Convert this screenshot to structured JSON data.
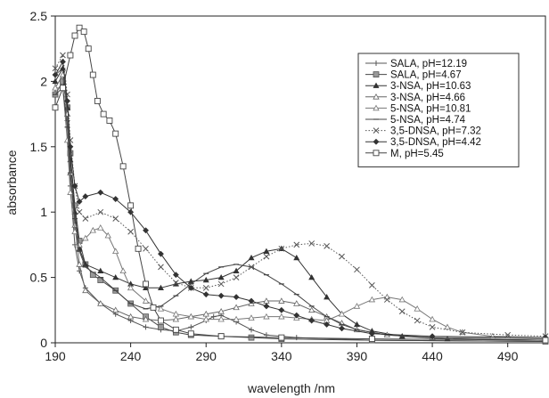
{
  "chart_data": {
    "type": "line",
    "title": "",
    "xlabel": "wavelength /nm",
    "ylabel": "absorbance",
    "xlim": [
      190,
      515
    ],
    "ylim": [
      0,
      2.5
    ],
    "xticks": [
      "190",
      "240",
      "290",
      "340",
      "390",
      "440",
      "490"
    ],
    "yticks": [
      "0",
      "0.5",
      "1",
      "1.5",
      "2",
      "2.5"
    ],
    "grid": false,
    "legend_position": "top-right",
    "series": [
      {
        "name": "SALA, pH=12.19",
        "marker": "plus",
        "line": "solid",
        "color": "#555555",
        "points": [
          [
            190,
            2.05
          ],
          [
            195,
            2.1
          ],
          [
            198,
            1.7
          ],
          [
            200,
            1.2
          ],
          [
            203,
            0.75
          ],
          [
            206,
            0.55
          ],
          [
            210,
            0.42
          ],
          [
            220,
            0.3
          ],
          [
            230,
            0.22
          ],
          [
            240,
            0.17
          ],
          [
            250,
            0.12
          ],
          [
            260,
            0.1
          ],
          [
            270,
            0.09
          ],
          [
            280,
            0.12
          ],
          [
            290,
            0.17
          ],
          [
            295,
            0.2
          ],
          [
            300,
            0.21
          ],
          [
            310,
            0.16
          ],
          [
            320,
            0.1
          ],
          [
            330,
            0.06
          ],
          [
            350,
            0.04
          ],
          [
            400,
            0.02
          ],
          [
            515,
            0.01
          ]
        ]
      },
      {
        "name": "SALA, pH=4.67",
        "marker": "square-filled",
        "line": "solid",
        "color": "#444444",
        "points": [
          [
            190,
            1.9
          ],
          [
            195,
            2.0
          ],
          [
            198,
            1.8
          ],
          [
            200,
            1.45
          ],
          [
            203,
            1.05
          ],
          [
            206,
            0.78
          ],
          [
            210,
            0.6
          ],
          [
            215,
            0.52
          ],
          [
            220,
            0.48
          ],
          [
            230,
            0.4
          ],
          [
            240,
            0.3
          ],
          [
            250,
            0.2
          ],
          [
            260,
            0.12
          ],
          [
            270,
            0.08
          ],
          [
            280,
            0.06
          ],
          [
            300,
            0.05
          ],
          [
            320,
            0.04
          ],
          [
            340,
            0.03
          ],
          [
            400,
            0.02
          ],
          [
            515,
            0.01
          ]
        ]
      },
      {
        "name": "3-NSA, pH=10.63",
        "marker": "triangle-filled",
        "line": "solid",
        "color": "#333333",
        "points": [
          [
            190,
            2.0
          ],
          [
            195,
            2.1
          ],
          [
            198,
            1.8
          ],
          [
            200,
            1.4
          ],
          [
            203,
            1.0
          ],
          [
            206,
            0.72
          ],
          [
            210,
            0.6
          ],
          [
            220,
            0.55
          ],
          [
            230,
            0.5
          ],
          [
            240,
            0.45
          ],
          [
            250,
            0.42
          ],
          [
            260,
            0.42
          ],
          [
            270,
            0.45
          ],
          [
            280,
            0.47
          ],
          [
            290,
            0.48
          ],
          [
            300,
            0.5
          ],
          [
            310,
            0.55
          ],
          [
            320,
            0.65
          ],
          [
            330,
            0.7
          ],
          [
            340,
            0.72
          ],
          [
            350,
            0.65
          ],
          [
            360,
            0.5
          ],
          [
            370,
            0.35
          ],
          [
            380,
            0.22
          ],
          [
            390,
            0.14
          ],
          [
            400,
            0.09
          ],
          [
            420,
            0.05
          ],
          [
            450,
            0.03
          ],
          [
            515,
            0.02
          ]
        ]
      },
      {
        "name": "3-NSA, pH=4.66",
        "marker": "triangle-open",
        "line": "solid",
        "color": "#666666",
        "points": [
          [
            190,
            1.95
          ],
          [
            195,
            2.05
          ],
          [
            198,
            1.75
          ],
          [
            200,
            1.3
          ],
          [
            203,
            0.9
          ],
          [
            206,
            0.6
          ],
          [
            210,
            0.4
          ],
          [
            220,
            0.3
          ],
          [
            230,
            0.25
          ],
          [
            240,
            0.2
          ],
          [
            250,
            0.18
          ],
          [
            260,
            0.17
          ],
          [
            270,
            0.18
          ],
          [
            280,
            0.2
          ],
          [
            290,
            0.22
          ],
          [
            300,
            0.24
          ],
          [
            310,
            0.27
          ],
          [
            320,
            0.3
          ],
          [
            330,
            0.32
          ],
          [
            340,
            0.32
          ],
          [
            350,
            0.3
          ],
          [
            360,
            0.25
          ],
          [
            370,
            0.2
          ],
          [
            380,
            0.15
          ],
          [
            390,
            0.1
          ],
          [
            410,
            0.06
          ],
          [
            440,
            0.04
          ],
          [
            515,
            0.03
          ]
        ]
      },
      {
        "name": "5-NSA, pH=10.81",
        "marker": "triangle-open",
        "line": "solid",
        "color": "#777777",
        "points": [
          [
            190,
            1.95
          ],
          [
            195,
            1.95
          ],
          [
            198,
            1.55
          ],
          [
            200,
            1.15
          ],
          [
            203,
            0.85
          ],
          [
            206,
            0.75
          ],
          [
            210,
            0.8
          ],
          [
            215,
            0.86
          ],
          [
            220,
            0.88
          ],
          [
            225,
            0.82
          ],
          [
            230,
            0.7
          ],
          [
            235,
            0.55
          ],
          [
            240,
            0.42
          ],
          [
            250,
            0.32
          ],
          [
            260,
            0.26
          ],
          [
            270,
            0.22
          ],
          [
            280,
            0.2
          ],
          [
            290,
            0.18
          ],
          [
            300,
            0.18
          ],
          [
            310,
            0.18
          ],
          [
            320,
            0.19
          ],
          [
            330,
            0.2
          ],
          [
            340,
            0.2
          ],
          [
            350,
            0.19
          ],
          [
            360,
            0.18
          ],
          [
            370,
            0.17
          ],
          [
            380,
            0.22
          ],
          [
            390,
            0.28
          ],
          [
            400,
            0.33
          ],
          [
            410,
            0.35
          ],
          [
            420,
            0.33
          ],
          [
            430,
            0.26
          ],
          [
            440,
            0.18
          ],
          [
            450,
            0.12
          ],
          [
            460,
            0.08
          ],
          [
            480,
            0.05
          ],
          [
            515,
            0.04
          ]
        ]
      },
      {
        "name": "5-NSA, pH=4.74",
        "marker": "dash",
        "line": "solid",
        "color": "#444444",
        "points": [
          [
            190,
            1.9
          ],
          [
            195,
            1.95
          ],
          [
            198,
            1.65
          ],
          [
            200,
            1.3
          ],
          [
            203,
            0.95
          ],
          [
            206,
            0.7
          ],
          [
            210,
            0.58
          ],
          [
            220,
            0.5
          ],
          [
            230,
            0.4
          ],
          [
            240,
            0.3
          ],
          [
            250,
            0.26
          ],
          [
            260,
            0.28
          ],
          [
            270,
            0.36
          ],
          [
            280,
            0.45
          ],
          [
            290,
            0.53
          ],
          [
            300,
            0.58
          ],
          [
            310,
            0.6
          ],
          [
            320,
            0.58
          ],
          [
            330,
            0.52
          ],
          [
            340,
            0.45
          ],
          [
            350,
            0.37
          ],
          [
            360,
            0.28
          ],
          [
            370,
            0.2
          ],
          [
            380,
            0.14
          ],
          [
            390,
            0.1
          ],
          [
            410,
            0.06
          ],
          [
            450,
            0.03
          ],
          [
            515,
            0.02
          ]
        ]
      },
      {
        "name": "3,5-DNSA, pH=7.32",
        "marker": "x",
        "line": "dotted",
        "color": "#555555",
        "points": [
          [
            190,
            2.1
          ],
          [
            195,
            2.2
          ],
          [
            198,
            1.9
          ],
          [
            200,
            1.55
          ],
          [
            203,
            1.2
          ],
          [
            206,
            1.0
          ],
          [
            210,
            0.95
          ],
          [
            220,
            1.0
          ],
          [
            230,
            0.95
          ],
          [
            240,
            0.85
          ],
          [
            250,
            0.72
          ],
          [
            260,
            0.58
          ],
          [
            270,
            0.46
          ],
          [
            280,
            0.42
          ],
          [
            290,
            0.42
          ],
          [
            300,
            0.45
          ],
          [
            310,
            0.5
          ],
          [
            320,
            0.58
          ],
          [
            330,
            0.66
          ],
          [
            340,
            0.72
          ],
          [
            350,
            0.75
          ],
          [
            360,
            0.76
          ],
          [
            370,
            0.74
          ],
          [
            380,
            0.66
          ],
          [
            390,
            0.56
          ],
          [
            400,
            0.44
          ],
          [
            410,
            0.33
          ],
          [
            420,
            0.24
          ],
          [
            430,
            0.17
          ],
          [
            440,
            0.12
          ],
          [
            460,
            0.08
          ],
          [
            490,
            0.06
          ],
          [
            515,
            0.05
          ]
        ]
      },
      {
        "name": "3,5-DNSA, pH=4.42",
        "marker": "diamond-filled",
        "line": "solid",
        "color": "#333333",
        "points": [
          [
            190,
            2.05
          ],
          [
            195,
            2.15
          ],
          [
            198,
            1.85
          ],
          [
            200,
            1.5
          ],
          [
            203,
            1.2
          ],
          [
            206,
            1.08
          ],
          [
            210,
            1.12
          ],
          [
            220,
            1.15
          ],
          [
            230,
            1.1
          ],
          [
            240,
            1.0
          ],
          [
            250,
            0.86
          ],
          [
            260,
            0.68
          ],
          [
            270,
            0.52
          ],
          [
            280,
            0.42
          ],
          [
            290,
            0.37
          ],
          [
            300,
            0.36
          ],
          [
            310,
            0.35
          ],
          [
            320,
            0.32
          ],
          [
            330,
            0.28
          ],
          [
            340,
            0.25
          ],
          [
            350,
            0.21
          ],
          [
            360,
            0.17
          ],
          [
            370,
            0.14
          ],
          [
            380,
            0.11
          ],
          [
            400,
            0.07
          ],
          [
            440,
            0.05
          ],
          [
            515,
            0.04
          ]
        ]
      },
      {
        "name": "M, pH=5.45",
        "marker": "square-open",
        "line": "solid",
        "color": "#444444",
        "points": [
          [
            190,
            1.8
          ],
          [
            195,
            1.95
          ],
          [
            200,
            2.2
          ],
          [
            203,
            2.35
          ],
          [
            206,
            2.41
          ],
          [
            209,
            2.38
          ],
          [
            212,
            2.25
          ],
          [
            215,
            2.05
          ],
          [
            218,
            1.85
          ],
          [
            222,
            1.75
          ],
          [
            226,
            1.7
          ],
          [
            230,
            1.6
          ],
          [
            235,
            1.35
          ],
          [
            240,
            1.05
          ],
          [
            245,
            0.72
          ],
          [
            250,
            0.45
          ],
          [
            255,
            0.27
          ],
          [
            260,
            0.17
          ],
          [
            270,
            0.1
          ],
          [
            280,
            0.07
          ],
          [
            300,
            0.05
          ],
          [
            340,
            0.04
          ],
          [
            400,
            0.03
          ],
          [
            515,
            0.02
          ]
        ]
      }
    ]
  }
}
